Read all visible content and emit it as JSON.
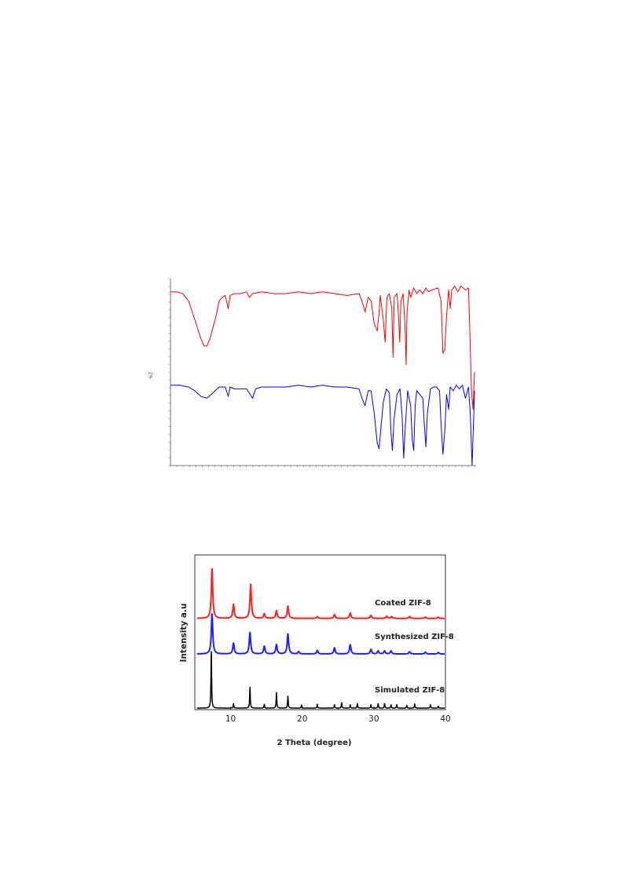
{
  "chart_data": [
    {
      "type": "line",
      "title": "",
      "xlabel": "",
      "ylabel": "%T",
      "grid": false,
      "legend": "none",
      "series": [
        {
          "color": "#ff0000",
          "points": [
            [
              0,
              93
            ],
            [
              2,
              93
            ],
            [
              4,
              92
            ],
            [
              6,
              88
            ],
            [
              8,
              78
            ],
            [
              10,
              68
            ],
            [
              11,
              64
            ],
            [
              12,
              64
            ],
            [
              13,
              68
            ],
            [
              15,
              80
            ],
            [
              16,
              88
            ],
            [
              17,
              90
            ],
            [
              18,
              91
            ],
            [
              19,
              84
            ],
            [
              19.6,
              91
            ],
            [
              21,
              92
            ],
            [
              23,
              92
            ],
            [
              25,
              93
            ],
            [
              26,
              90
            ],
            [
              27,
              92
            ],
            [
              30,
              93
            ],
            [
              34,
              92
            ],
            [
              38,
              92
            ],
            [
              42,
              93
            ],
            [
              46,
              92
            ],
            [
              50,
              93
            ],
            [
              54,
              92
            ],
            [
              58,
              91
            ],
            [
              62,
              92
            ],
            [
              63,
              88
            ],
            [
              64,
              82
            ],
            [
              65,
              90
            ],
            [
              66,
              88
            ],
            [
              67,
              76
            ],
            [
              68,
              72
            ],
            [
              68.6,
              82
            ],
            [
              69,
              91
            ],
            [
              70,
              78
            ],
            [
              70.6,
              66
            ],
            [
              71.2,
              90
            ],
            [
              72,
              92
            ],
            [
              72.8,
              84
            ],
            [
              73.2,
              58
            ],
            [
              73.6,
              90
            ],
            [
              74.5,
              92
            ],
            [
              75,
              80
            ],
            [
              75.4,
              66
            ],
            [
              75.8,
              88
            ],
            [
              76.5,
              92
            ],
            [
              77.2,
              72
            ],
            [
              77.5,
              54
            ],
            [
              77.8,
              82
            ],
            [
              78.5,
              94
            ],
            [
              79,
              90
            ],
            [
              80,
              95
            ],
            [
              81,
              92
            ],
            [
              82,
              94
            ],
            [
              83,
              92
            ],
            [
              84,
              95
            ],
            [
              85,
              93
            ],
            [
              86,
              94
            ],
            [
              88,
              95
            ],
            [
              89,
              88
            ],
            [
              89.6,
              60
            ],
            [
              90.2,
              62
            ],
            [
              90.8,
              80
            ],
            [
              91.5,
              94
            ],
            [
              92,
              84
            ],
            [
              92.5,
              94
            ],
            [
              93.5,
              96
            ],
            [
              94.5,
              93
            ],
            [
              95.5,
              96
            ],
            [
              97,
              94
            ],
            [
              98,
              95
            ],
            [
              98.5,
              70
            ],
            [
              99,
              40
            ],
            [
              99.5,
              30
            ],
            [
              100,
              50
            ]
          ]
        },
        {
          "color": "#0000ff",
          "points": [
            [
              0,
              43
            ],
            [
              3,
              43
            ],
            [
              6,
              42
            ],
            [
              8,
              40
            ],
            [
              10,
              37
            ],
            [
              12,
              36
            ],
            [
              14,
              39
            ],
            [
              16,
              42
            ],
            [
              18,
              42
            ],
            [
              19,
              37
            ],
            [
              19.6,
              42
            ],
            [
              21,
              41
            ],
            [
              23,
              41
            ],
            [
              25,
              41
            ],
            [
              27,
              36
            ],
            [
              28,
              41
            ],
            [
              30,
              42
            ],
            [
              34,
              42
            ],
            [
              38,
              42
            ],
            [
              42,
              43
            ],
            [
              46,
              42
            ],
            [
              50,
              43
            ],
            [
              54,
              42
            ],
            [
              58,
              42
            ],
            [
              62,
              41
            ],
            [
              63,
              36
            ],
            [
              64,
              32
            ],
            [
              65,
              40
            ],
            [
              66,
              40
            ],
            [
              67,
              28
            ],
            [
              68,
              12
            ],
            [
              68.6,
              9
            ],
            [
              69.2,
              20
            ],
            [
              70,
              34
            ],
            [
              71,
              41
            ],
            [
              72,
              39
            ],
            [
              72.5,
              18
            ],
            [
              73,
              8
            ],
            [
              73.5,
              24
            ],
            [
              74.5,
              38
            ],
            [
              75.5,
              41
            ],
            [
              76.2,
              26
            ],
            [
              76.7,
              4
            ],
            [
              77.2,
              20
            ],
            [
              78,
              40
            ],
            [
              79,
              32
            ],
            [
              79.5,
              14
            ],
            [
              80,
              8
            ],
            [
              80.5,
              32
            ],
            [
              81,
              40
            ],
            [
              82,
              38
            ],
            [
              83,
              36
            ],
            [
              83.5,
              22
            ],
            [
              84,
              10
            ],
            [
              84.5,
              28
            ],
            [
              85.5,
              41
            ],
            [
              86.5,
              42
            ],
            [
              87.5,
              42
            ],
            [
              88.5,
              40
            ],
            [
              89,
              22
            ],
            [
              89.6,
              6
            ],
            [
              90.2,
              18
            ],
            [
              90.8,
              38
            ],
            [
              91.5,
              30
            ],
            [
              92,
              42
            ],
            [
              93,
              40
            ],
            [
              94,
              43
            ],
            [
              95,
              41
            ],
            [
              96,
              43
            ],
            [
              97,
              36
            ],
            [
              98,
              42
            ],
            [
              98.6,
              28
            ],
            [
              99.2,
              0
            ],
            [
              99.6,
              20
            ],
            [
              100,
              40
            ]
          ]
        }
      ]
    },
    {
      "type": "line",
      "title": "",
      "xlabel": "2 Theta (degree)",
      "ylabel": "Intensity a.u",
      "xlim": [
        5,
        40
      ],
      "xticks": [
        10,
        20,
        30,
        40
      ],
      "xtick_labels": [
        "10",
        "20",
        "30",
        "40"
      ],
      "ylim": [
        0,
        100
      ],
      "grid": false,
      "legend": "inline labels",
      "series": [
        {
          "name": "Coated ZIF-8",
          "color": "#ff2020",
          "baseline": 59,
          "peaks": [
            [
              7.4,
              32
            ],
            [
              10.4,
              9
            ],
            [
              12.8,
              22
            ],
            [
              14.7,
              3
            ],
            [
              16.4,
              5
            ],
            [
              18.0,
              8
            ],
            [
              22.1,
              1.2
            ],
            [
              24.5,
              2.5
            ],
            [
              26.7,
              3.5
            ],
            [
              29.6,
              2
            ],
            [
              31.8,
              1.5
            ],
            [
              32.5,
              1.2
            ],
            [
              35.0,
              1.2
            ],
            [
              37.2,
              0.8
            ],
            [
              39.0,
              0.8
            ]
          ]
        },
        {
          "name": "Synthesized ZIF-8",
          "color": "#2020ff",
          "baseline": 36,
          "peaks": [
            [
              7.4,
              26
            ],
            [
              10.4,
              7
            ],
            [
              12.7,
              14
            ],
            [
              14.7,
              5
            ],
            [
              16.4,
              6
            ],
            [
              18.0,
              13
            ],
            [
              19.5,
              1.5
            ],
            [
              22.1,
              2.2
            ],
            [
              24.5,
              4
            ],
            [
              26.7,
              6
            ],
            [
              29.6,
              3
            ],
            [
              30.6,
              2
            ],
            [
              31.5,
              2
            ],
            [
              32.4,
              2
            ],
            [
              35.0,
              1.5
            ],
            [
              37.2,
              1.2
            ],
            [
              39.0,
              1
            ]
          ]
        },
        {
          "name": "Simulated ZIF-8",
          "color": "#000000",
          "baseline": 1,
          "peaks": [
            [
              7.3,
              38
            ],
            [
              10.4,
              3
            ],
            [
              12.7,
              14
            ],
            [
              14.7,
              2.5
            ],
            [
              16.4,
              10
            ],
            [
              18.0,
              8
            ],
            [
              19.9,
              2
            ],
            [
              22.1,
              2.5
            ],
            [
              24.5,
              2.2
            ],
            [
              25.5,
              3.5
            ],
            [
              26.7,
              2.2
            ],
            [
              27.7,
              3
            ],
            [
              29.6,
              2.2
            ],
            [
              30.6,
              3
            ],
            [
              31.5,
              3
            ],
            [
              32.4,
              2.2
            ],
            [
              33.2,
              2.2
            ],
            [
              34.6,
              1.8
            ],
            [
              35.7,
              2.8
            ],
            [
              37.9,
              2.2
            ],
            [
              39.0,
              1.2
            ]
          ]
        }
      ]
    }
  ]
}
